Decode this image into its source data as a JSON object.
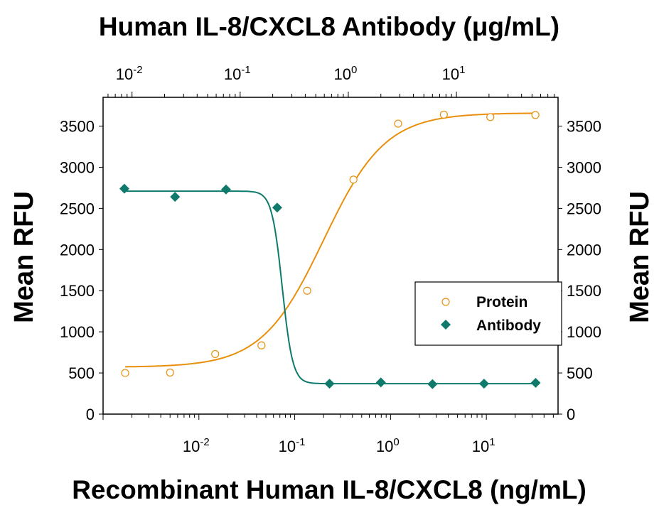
{
  "chart_data": {
    "type": "scatter",
    "title": "Human IL-8/CXCL8 Antibody (μg/mL)",
    "xlabel": "Recombinant Human IL-8/CXCL8 (ng/mL)",
    "x2label": "Human IL-8/CXCL8 Antibody (μg/mL)",
    "ylabel": "Mean RFU",
    "y2label": "Mean RFU",
    "xscale": "log",
    "xlim": [
      0.001,
      56
    ],
    "x2lim": [
      0.0054,
      87
    ],
    "ylim": [
      0,
      3850
    ],
    "yticks": [
      0,
      500,
      1000,
      1500,
      2000,
      2500,
      3000,
      3500
    ],
    "xticks": [
      {
        "value": 0.01,
        "base": "10",
        "exp": "-2"
      },
      {
        "value": 0.1,
        "base": "10",
        "exp": "-1"
      },
      {
        "value": 1,
        "base": "10",
        "exp": "0"
      },
      {
        "value": 10,
        "base": "10",
        "exp": "1"
      }
    ],
    "grid": false,
    "legend_position": "right-middle",
    "series": [
      {
        "name": "Protein",
        "axis": "bottom",
        "marker": "open-circle",
        "color": "#E8900C",
        "fit": "sigmoidal",
        "x": [
          0.0017,
          0.005,
          0.0148,
          0.045,
          0.135,
          0.41,
          1.2,
          3.6,
          11,
          32.5
        ],
        "y": [
          500,
          505,
          730,
          835,
          1500,
          2850,
          3530,
          3640,
          3610,
          3635
        ]
      },
      {
        "name": "Antibody",
        "axis": "top",
        "marker": "filled-diamond",
        "color": "#0F7A6C",
        "fit": "sigmoidal",
        "x": [
          0.0085,
          0.025,
          0.074,
          0.22,
          0.67,
          2.0,
          6.0,
          18,
          54
        ],
        "y": [
          2740,
          2640,
          2730,
          2510,
          370,
          385,
          365,
          370,
          380
        ]
      }
    ]
  }
}
